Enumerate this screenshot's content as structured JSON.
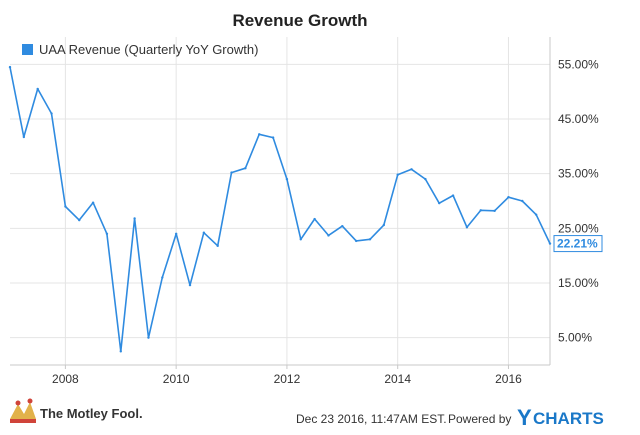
{
  "chart_data": {
    "type": "line",
    "title": "Revenue Growth",
    "xlabel": "",
    "ylabel": "",
    "legend": "top-left",
    "grid": true,
    "ylim": [
      0,
      60
    ],
    "xlim": [
      2007.0,
      2016.75
    ],
    "yticks": [
      5,
      15,
      25,
      35,
      45,
      55
    ],
    "ytick_labels": [
      "5.00%",
      "15.00%",
      "25.00%",
      "35.00%",
      "45.00%",
      "55.00%"
    ],
    "xticks": [
      2008,
      2010,
      2012,
      2014,
      2016
    ],
    "xtick_labels": [
      "2008",
      "2010",
      "2012",
      "2014",
      "2016"
    ],
    "series": [
      {
        "name": "UAA Revenue (Quarterly YoY Growth)",
        "color": "#2f8be0",
        "last_label": "22.21%",
        "x": [
          2007.0,
          2007.25,
          2007.5,
          2007.75,
          2008.0,
          2008.25,
          2008.5,
          2008.75,
          2009.0,
          2009.25,
          2009.5,
          2009.75,
          2010.0,
          2010.25,
          2010.5,
          2010.75,
          2011.0,
          2011.25,
          2011.5,
          2011.75,
          2012.0,
          2012.25,
          2012.5,
          2012.75,
          2013.0,
          2013.25,
          2013.5,
          2013.75,
          2014.0,
          2014.25,
          2014.5,
          2014.75,
          2015.0,
          2015.25,
          2015.5,
          2015.75,
          2016.0,
          2016.25,
          2016.5,
          2016.75
        ],
        "y": [
          54.5,
          41.7,
          50.5,
          46.0,
          29.0,
          26.5,
          29.7,
          24.0,
          2.5,
          26.8,
          5.0,
          16.0,
          24.0,
          14.6,
          24.2,
          21.8,
          35.2,
          36.0,
          42.2,
          41.6,
          34.0,
          23.0,
          26.7,
          23.7,
          25.4,
          22.7,
          23.0,
          25.6,
          34.8,
          35.8,
          34.0,
          29.6,
          31.0,
          25.2,
          28.3,
          28.2,
          30.7,
          30.0,
          27.5,
          22.21
        ]
      }
    ]
  },
  "footer": {
    "brand": "The Motley Fool.",
    "timestamp": "Dec 23 2016, 11:47AM EST.",
    "powered_by": "Powered by",
    "ycharts_y": "Y",
    "ycharts_rest": "CHARTS"
  },
  "colors": {
    "line": "#2f8be0",
    "grid": "#e4e4e4",
    "axis": "#c8c8c8",
    "ycharts": "#1a78c8",
    "fool_red": "#d0443a",
    "fool_gold": "#e2b24a"
  }
}
